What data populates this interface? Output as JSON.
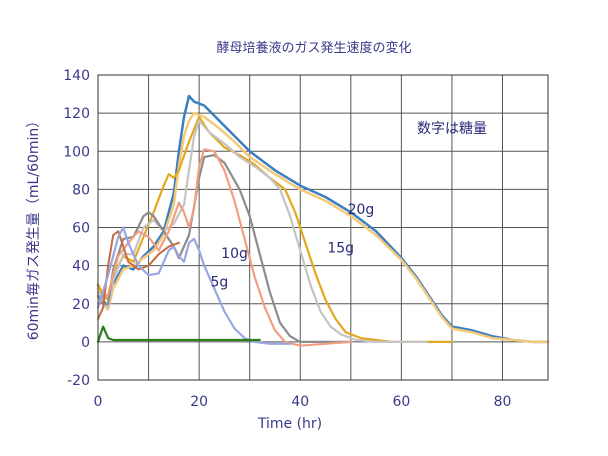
{
  "chart_data": {
    "type": "line",
    "title": "酵母培養液のガス発生速度の変化",
    "xlabel": "Time (hr)",
    "ylabel": "60min毎ガス発生量（mL/60min）",
    "xlim": [
      0,
      89
    ],
    "ylim": [
      -20,
      140
    ],
    "xticks": [
      0,
      20,
      40,
      60,
      80
    ],
    "yticks": [
      -20,
      0,
      20,
      40,
      60,
      80,
      100,
      120,
      140
    ],
    "grid": true,
    "legend_note": "数字は糖量",
    "annotations": [
      {
        "text": "20g",
        "x": 52,
        "y": 67
      },
      {
        "text": "15g",
        "x": 48,
        "y": 47
      },
      {
        "text": "10g",
        "x": 27,
        "y": 44
      },
      {
        "text": "5g",
        "x": 24,
        "y": 29
      }
    ],
    "series": [
      {
        "color": "#3a7fc0",
        "width": 2.5,
        "points": [
          [
            0,
            30
          ],
          [
            1,
            22
          ],
          [
            2,
            18
          ],
          [
            3,
            30
          ],
          [
            5,
            40
          ],
          [
            7,
            38
          ],
          [
            9,
            45
          ],
          [
            11,
            50
          ],
          [
            13,
            58
          ],
          [
            15,
            78
          ],
          [
            16,
            100
          ],
          [
            17,
            118
          ],
          [
            18,
            129
          ],
          [
            19,
            126
          ],
          [
            21,
            124
          ],
          [
            24,
            116
          ],
          [
            27,
            108
          ],
          [
            30,
            100
          ],
          [
            35,
            90
          ],
          [
            40,
            82
          ],
          [
            45,
            76
          ],
          [
            50,
            68
          ],
          [
            55,
            58
          ],
          [
            60,
            44
          ],
          [
            63,
            34
          ],
          [
            66,
            22
          ],
          [
            68,
            14
          ],
          [
            70,
            8
          ],
          [
            74,
            6
          ],
          [
            78,
            3
          ],
          [
            82,
            1
          ],
          [
            86,
            0
          ],
          [
            89,
            0
          ]
        ]
      },
      {
        "color": "#f5c97a",
        "width": 2.5,
        "points": [
          [
            0,
            28
          ],
          [
            1,
            20
          ],
          [
            2,
            17
          ],
          [
            3,
            28
          ],
          [
            5,
            38
          ],
          [
            7,
            40
          ],
          [
            9,
            44
          ],
          [
            11,
            48
          ],
          [
            13,
            56
          ],
          [
            15,
            72
          ],
          [
            16,
            92
          ],
          [
            17,
            108
          ],
          [
            18,
            116
          ],
          [
            19,
            120
          ],
          [
            21,
            118
          ],
          [
            24,
            112
          ],
          [
            27,
            105
          ],
          [
            30,
            97
          ],
          [
            35,
            88
          ],
          [
            40,
            80
          ],
          [
            45,
            74
          ],
          [
            50,
            66
          ],
          [
            55,
            56
          ],
          [
            60,
            43
          ],
          [
            63,
            33
          ],
          [
            66,
            21
          ],
          [
            68,
            13
          ],
          [
            70,
            7
          ],
          [
            74,
            5
          ],
          [
            78,
            2
          ],
          [
            82,
            1
          ],
          [
            86,
            0
          ],
          [
            89,
            0
          ]
        ]
      },
      {
        "color": "#e3a820",
        "width": 2.2,
        "points": [
          [
            0,
            30
          ],
          [
            1,
            25
          ],
          [
            2,
            22
          ],
          [
            3,
            35
          ],
          [
            5,
            45
          ],
          [
            7,
            42
          ],
          [
            9,
            55
          ],
          [
            11,
            68
          ],
          [
            13,
            82
          ],
          [
            14,
            88
          ],
          [
            15,
            86
          ],
          [
            16,
            90
          ],
          [
            18,
            105
          ],
          [
            20,
            118
          ],
          [
            22,
            110
          ],
          [
            25,
            102
          ],
          [
            28,
            98
          ],
          [
            31,
            93
          ],
          [
            34,
            86
          ],
          [
            37,
            80
          ],
          [
            39,
            68
          ],
          [
            41,
            52
          ],
          [
            43,
            36
          ],
          [
            45,
            22
          ],
          [
            47,
            12
          ],
          [
            49,
            5
          ],
          [
            52,
            2
          ],
          [
            58,
            0
          ],
          [
            65,
            0
          ],
          [
            70,
            0
          ]
        ]
      },
      {
        "color": "#c4c4c4",
        "width": 2.2,
        "points": [
          [
            0,
            26
          ],
          [
            1,
            20
          ],
          [
            2,
            18
          ],
          [
            3,
            32
          ],
          [
            5,
            46
          ],
          [
            7,
            46
          ],
          [
            9,
            60
          ],
          [
            11,
            64
          ],
          [
            13,
            58
          ],
          [
            15,
            62
          ],
          [
            17,
            72
          ],
          [
            18,
            90
          ],
          [
            19,
            108
          ],
          [
            20,
            116
          ],
          [
            22,
            110
          ],
          [
            25,
            104
          ],
          [
            28,
            97
          ],
          [
            31,
            92
          ],
          [
            34,
            86
          ],
          [
            36,
            80
          ],
          [
            38,
            66
          ],
          [
            40,
            48
          ],
          [
            42,
            30
          ],
          [
            44,
            16
          ],
          [
            46,
            8
          ],
          [
            48,
            4
          ],
          [
            51,
            1
          ],
          [
            55,
            0
          ],
          [
            65,
            0
          ]
        ]
      },
      {
        "color": "#8c8c8c",
        "width": 2.2,
        "points": [
          [
            0,
            24
          ],
          [
            1,
            20
          ],
          [
            2,
            20
          ],
          [
            3,
            38
          ],
          [
            5,
            54
          ],
          [
            7,
            55
          ],
          [
            9,
            66
          ],
          [
            10,
            68
          ],
          [
            11,
            66
          ],
          [
            13,
            58
          ],
          [
            15,
            50
          ],
          [
            16,
            44
          ],
          [
            18,
            56
          ],
          [
            20,
            86
          ],
          [
            21,
            97
          ],
          [
            23,
            98
          ],
          [
            25,
            94
          ],
          [
            28,
            80
          ],
          [
            30,
            66
          ],
          [
            32,
            46
          ],
          [
            34,
            26
          ],
          [
            36,
            10
          ],
          [
            38,
            3
          ],
          [
            40,
            0
          ],
          [
            45,
            0
          ],
          [
            50,
            0
          ]
        ]
      },
      {
        "color": "#f0a080",
        "width": 2.2,
        "points": [
          [
            0,
            20
          ],
          [
            2,
            25
          ],
          [
            4,
            45
          ],
          [
            6,
            52
          ],
          [
            8,
            58
          ],
          [
            10,
            55
          ],
          [
            12,
            48
          ],
          [
            14,
            58
          ],
          [
            16,
            73
          ],
          [
            17,
            68
          ],
          [
            18,
            60
          ],
          [
            19,
            70
          ],
          [
            20,
            92
          ],
          [
            21,
            101
          ],
          [
            23,
            100
          ],
          [
            25,
            90
          ],
          [
            27,
            74
          ],
          [
            29,
            54
          ],
          [
            31,
            34
          ],
          [
            33,
            18
          ],
          [
            35,
            6
          ],
          [
            37,
            0
          ],
          [
            40,
            -2
          ],
          [
            45,
            -1
          ],
          [
            50,
            0
          ]
        ]
      },
      {
        "color": "#c86a40",
        "width": 2.0,
        "points": [
          [
            0,
            12
          ],
          [
            1,
            18
          ],
          [
            2,
            40
          ],
          [
            3,
            56
          ],
          [
            4,
            58
          ],
          [
            5,
            50
          ],
          [
            6,
            42
          ],
          [
            7,
            40
          ],
          [
            8,
            38
          ],
          [
            10,
            40
          ],
          [
            12,
            46
          ],
          [
            14,
            50
          ],
          [
            16,
            52
          ]
        ]
      },
      {
        "color": "#9aa6e0",
        "width": 2.2,
        "points": [
          [
            0,
            18
          ],
          [
            2,
            35
          ],
          [
            4,
            55
          ],
          [
            5,
            60
          ],
          [
            6,
            52
          ],
          [
            8,
            40
          ],
          [
            10,
            35
          ],
          [
            12,
            36
          ],
          [
            14,
            48
          ],
          [
            15,
            50
          ],
          [
            16,
            45
          ],
          [
            17,
            42
          ],
          [
            18,
            52
          ],
          [
            19,
            54
          ],
          [
            20,
            48
          ],
          [
            21,
            40
          ],
          [
            23,
            28
          ],
          [
            25,
            16
          ],
          [
            27,
            7
          ],
          [
            29,
            2
          ],
          [
            31,
            0
          ],
          [
            34,
            -1
          ],
          [
            38,
            -1
          ]
        ]
      },
      {
        "color": "#2c7d1c",
        "width": 2.2,
        "points": [
          [
            0,
            0
          ],
          [
            0.5,
            4
          ],
          [
            1,
            8
          ],
          [
            2,
            2
          ],
          [
            3,
            1
          ],
          [
            10,
            1
          ],
          [
            20,
            1
          ],
          [
            30,
            1
          ],
          [
            32,
            1
          ]
        ]
      }
    ]
  }
}
